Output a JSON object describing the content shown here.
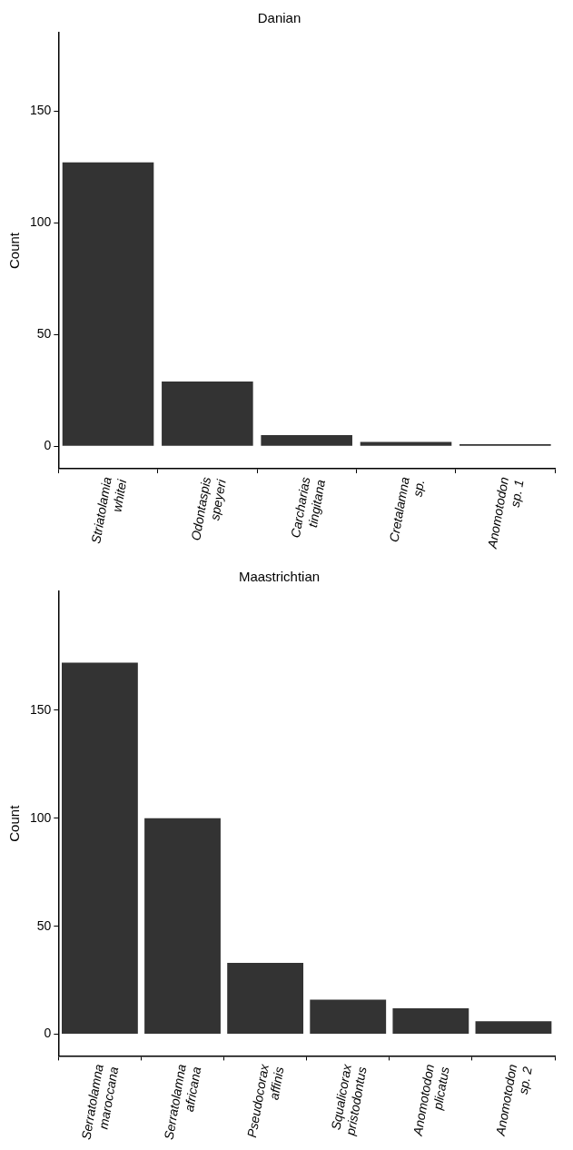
{
  "chart_data": [
    {
      "type": "bar",
      "title": "Danian",
      "ylabel": "Count",
      "categories": [
        "Striatolamia whitei",
        "Odontaspis speyeri",
        "Carcharias tingitana",
        "Cretalamna sp.",
        "Anomotodon sp. 1"
      ],
      "values": [
        127,
        29,
        5,
        2,
        1
      ],
      "color": "#333333",
      "ylim": [
        -10,
        185
      ],
      "yticks": [
        0,
        50,
        100,
        150
      ],
      "grid": false
    },
    {
      "type": "bar",
      "title": "Maastrichtian",
      "ylabel": "Count",
      "categories": [
        "Serratolamna maroccana",
        "Serratolamna africana",
        "Pseudocorax affinis",
        "Squalicorax pristodontus",
        "Anomotodon plicatus",
        "Anomotodon sp. 2"
      ],
      "values": [
        172,
        100,
        33,
        16,
        12,
        6
      ],
      "color": "#333333",
      "ylim": [
        -10,
        205
      ],
      "yticks": [
        0,
        50,
        100,
        150
      ],
      "grid": false
    }
  ]
}
